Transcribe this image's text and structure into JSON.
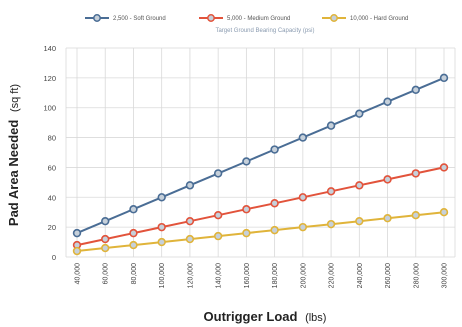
{
  "chart_data": {
    "type": "line",
    "title": "",
    "subtitle": "Target Ground Bearing Capacity (psi)",
    "xlabel_main": "Outrigger Load",
    "xlabel_unit": "(lbs)",
    "ylabel_main": "Pad Area Needed",
    "ylabel_unit": "(sq ft)",
    "x": [
      40000,
      60000,
      80000,
      100000,
      120000,
      140000,
      160000,
      180000,
      200000,
      220000,
      240000,
      260000,
      280000,
      300000
    ],
    "x_tick_labels": [
      "40,000",
      "60,000",
      "80,000",
      "100,000",
      "120,000",
      "140,000",
      "160,000",
      "180,000",
      "200,000",
      "220,000",
      "240,000",
      "260,000",
      "280,000",
      "300,000"
    ],
    "ylim": [
      0,
      140
    ],
    "y_ticks": [
      0,
      20,
      40,
      60,
      80,
      100,
      120,
      140
    ],
    "grid": true,
    "legend_position": "top",
    "series": [
      {
        "name": "2,500 - Soft Ground",
        "color": "#4a6d95",
        "values": [
          16,
          24,
          32,
          40,
          48,
          56,
          64,
          72,
          80,
          88,
          96,
          104,
          112,
          120
        ]
      },
      {
        "name": "5,000 - Medium Ground",
        "color": "#e2533b",
        "values": [
          8,
          12,
          16,
          20,
          24,
          28,
          32,
          36,
          40,
          44,
          48,
          52,
          56,
          60
        ]
      },
      {
        "name": "10,000 - Hard Ground",
        "color": "#e0b43a",
        "values": [
          4,
          6,
          8,
          10,
          12,
          14,
          16,
          18,
          20,
          22,
          24,
          26,
          28,
          30
        ]
      }
    ]
  }
}
